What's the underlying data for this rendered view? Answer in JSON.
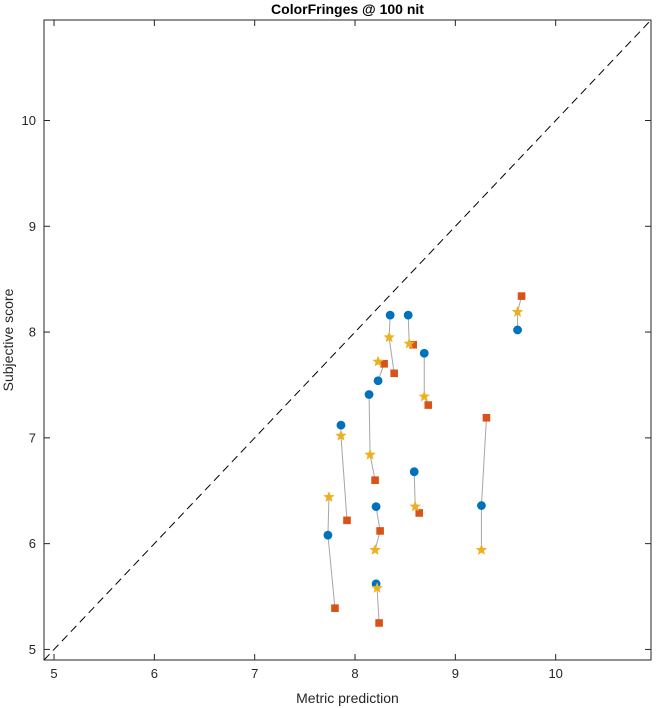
{
  "chart_data": {
    "type": "scatter",
    "title": "ColorFringes @ 100 nit",
    "xlabel": "Metric prediction",
    "ylabel": "Subjective score",
    "xlim": [
      4.9,
      10.95
    ],
    "ylim": [
      4.9,
      10.95
    ],
    "xticks": [
      "5",
      "6",
      "7",
      "8",
      "9",
      "10"
    ],
    "yticks": [
      "5",
      "6",
      "7",
      "8",
      "9",
      "10"
    ],
    "grid": false,
    "reference_line": "y = x (dashed)",
    "colors": {
      "series1": "#0072BD",
      "series2": "#D95319",
      "series3": "#EDB120",
      "connector": "#A6A6A6",
      "axis": "#262626"
    },
    "groups": [
      {
        "circle": [
          7.73,
          6.08
        ],
        "square": [
          7.8,
          5.39
        ],
        "star": [
          7.74,
          6.44
        ]
      },
      {
        "circle": [
          7.86,
          7.12
        ],
        "square": [
          7.92,
          6.22
        ],
        "star": [
          7.86,
          7.02
        ]
      },
      {
        "circle": [
          8.21,
          5.62
        ],
        "square": [
          8.24,
          5.25
        ],
        "star": [
          8.22,
          5.58
        ]
      },
      {
        "circle": [
          8.21,
          6.35
        ],
        "square": [
          8.25,
          6.12
        ],
        "star": [
          8.2,
          5.94
        ]
      },
      {
        "circle": [
          8.14,
          7.41
        ],
        "square": [
          8.2,
          6.6
        ],
        "star": [
          8.15,
          6.84
        ]
      },
      {
        "circle": [
          8.23,
          7.54
        ],
        "square": [
          8.29,
          7.7
        ],
        "star": [
          8.23,
          7.72
        ]
      },
      {
        "circle": [
          8.35,
          8.16
        ],
        "square": [
          8.39,
          7.61
        ],
        "star": [
          8.34,
          7.95
        ]
      },
      {
        "circle": [
          8.53,
          8.16
        ],
        "square": [
          8.58,
          7.88
        ],
        "star": [
          8.54,
          7.89
        ]
      },
      {
        "circle": [
          8.69,
          7.8
        ],
        "square": [
          8.73,
          7.31
        ],
        "star": [
          8.69,
          7.39
        ]
      },
      {
        "circle": [
          8.59,
          6.68
        ],
        "square": [
          8.64,
          6.29
        ],
        "star": [
          8.6,
          6.35
        ]
      },
      {
        "circle": [
          9.26,
          6.36
        ],
        "square": [
          9.31,
          7.19
        ],
        "star": [
          9.26,
          5.94
        ]
      },
      {
        "circle": [
          9.62,
          8.02
        ],
        "square": [
          9.66,
          8.34
        ],
        "star": [
          9.62,
          8.19
        ]
      }
    ]
  }
}
